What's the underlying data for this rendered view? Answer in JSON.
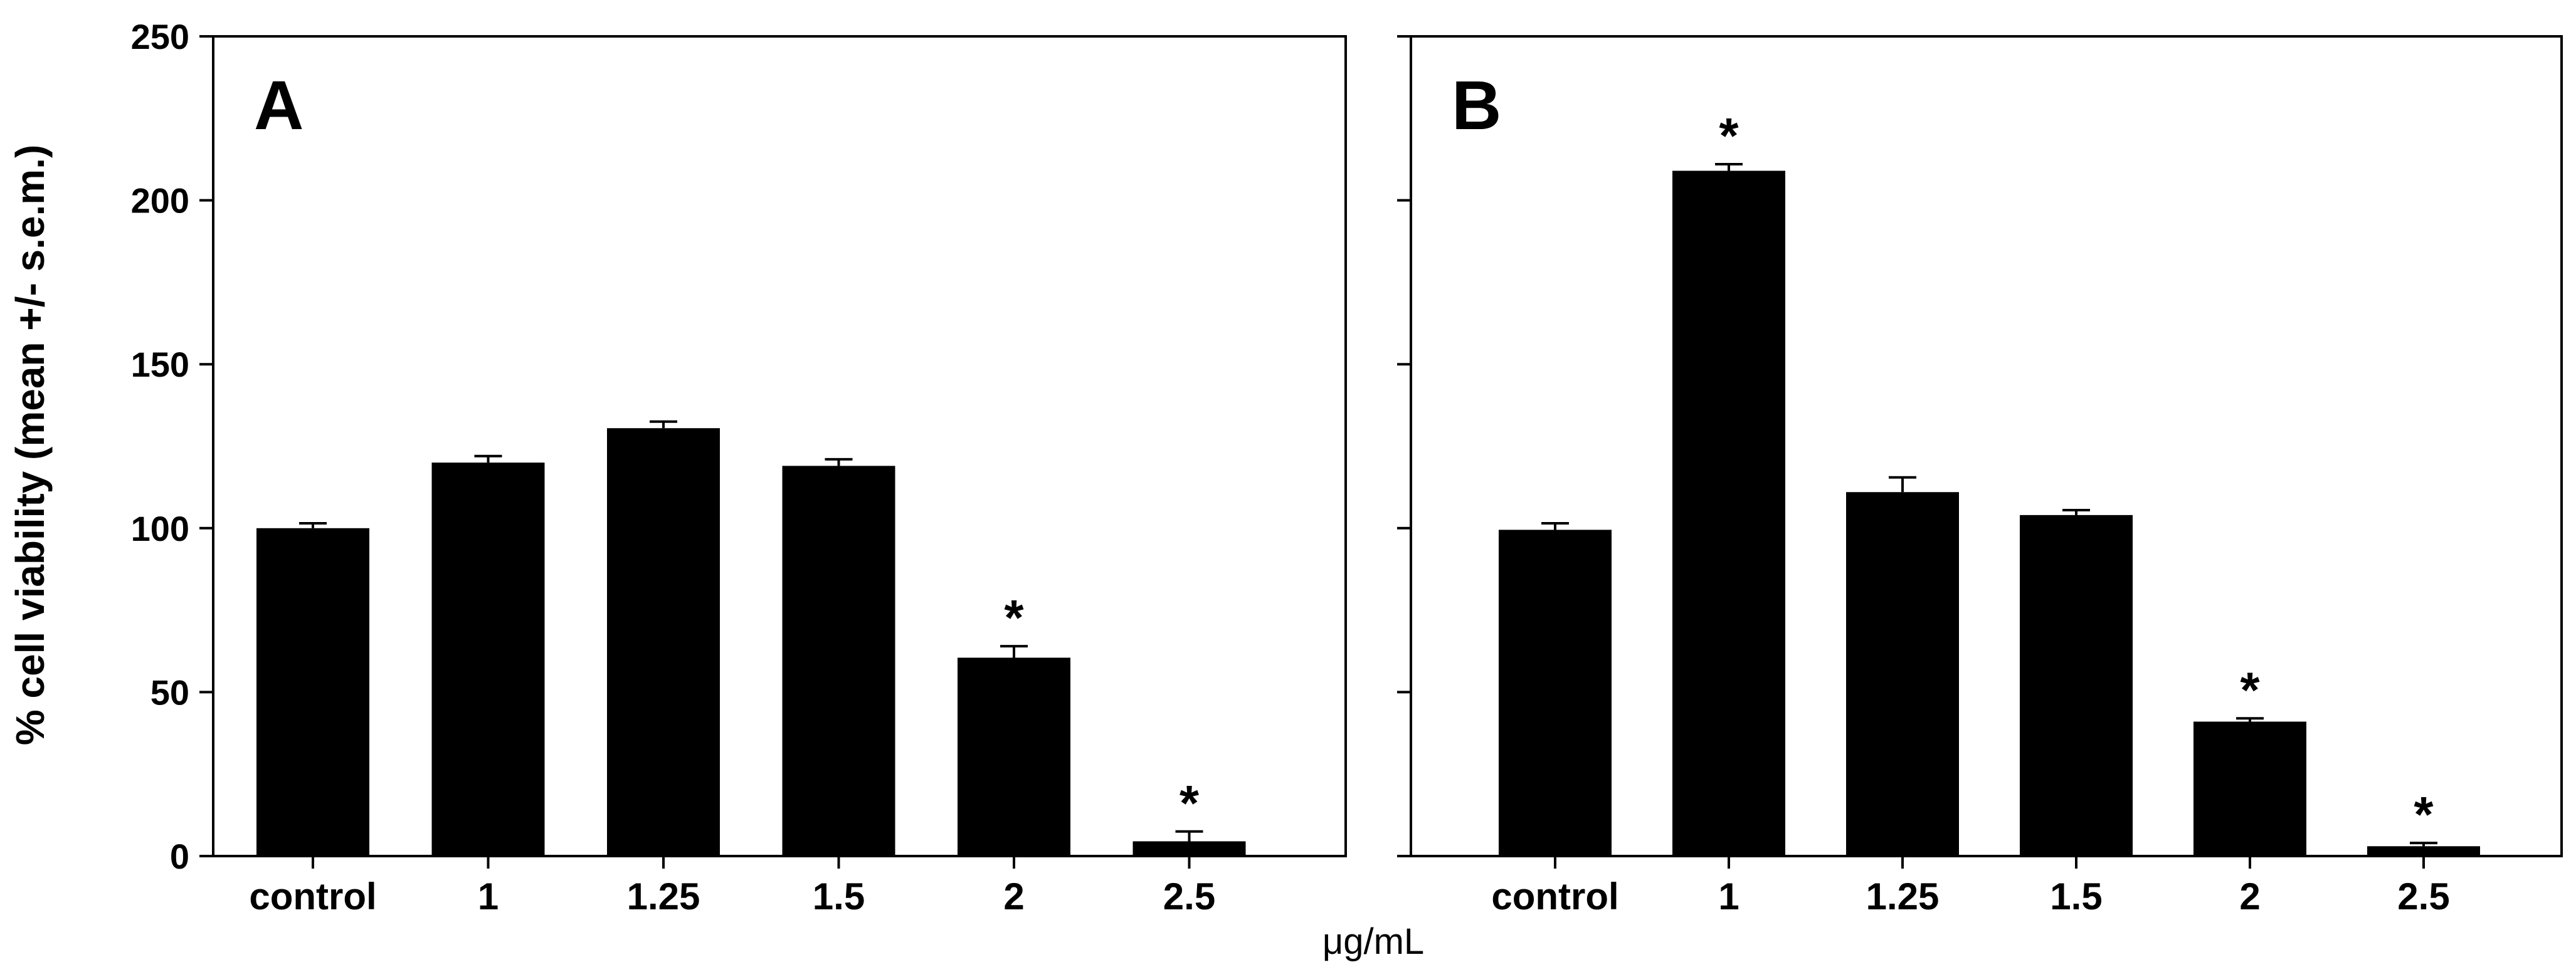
{
  "chart_data": [
    {
      "type": "bar",
      "panel_label": "A",
      "categories": [
        "control",
        "1",
        "1.25",
        "1.5",
        "2",
        "2.5"
      ],
      "values": [
        100,
        120,
        130.5,
        119,
        60.5,
        4.5
      ],
      "errors": [
        1.5,
        2,
        2,
        2,
        3.5,
        3
      ],
      "significant": [
        false,
        false,
        false,
        false,
        true,
        true
      ],
      "significance_marker": "*",
      "ylim": [
        0,
        250
      ],
      "yticks": [
        0,
        50,
        100,
        150,
        200,
        250
      ],
      "ylabel": "% cell viability (mean +/- s.e.m.)",
      "xlabel": "μg/mL"
    },
    {
      "type": "bar",
      "panel_label": "B",
      "categories": [
        "control",
        "1",
        "1.25",
        "1.5",
        "2",
        "2.5"
      ],
      "values": [
        99.5,
        209,
        111,
        104,
        41,
        3
      ],
      "errors": [
        2,
        2,
        4.5,
        1.5,
        1,
        1
      ],
      "significant": [
        false,
        true,
        false,
        false,
        true,
        true
      ],
      "significance_marker": "*",
      "ylim": [
        0,
        250
      ],
      "yticks": [
        0,
        50,
        100,
        150,
        200,
        250
      ],
      "ylabel": "",
      "xlabel": ""
    }
  ]
}
